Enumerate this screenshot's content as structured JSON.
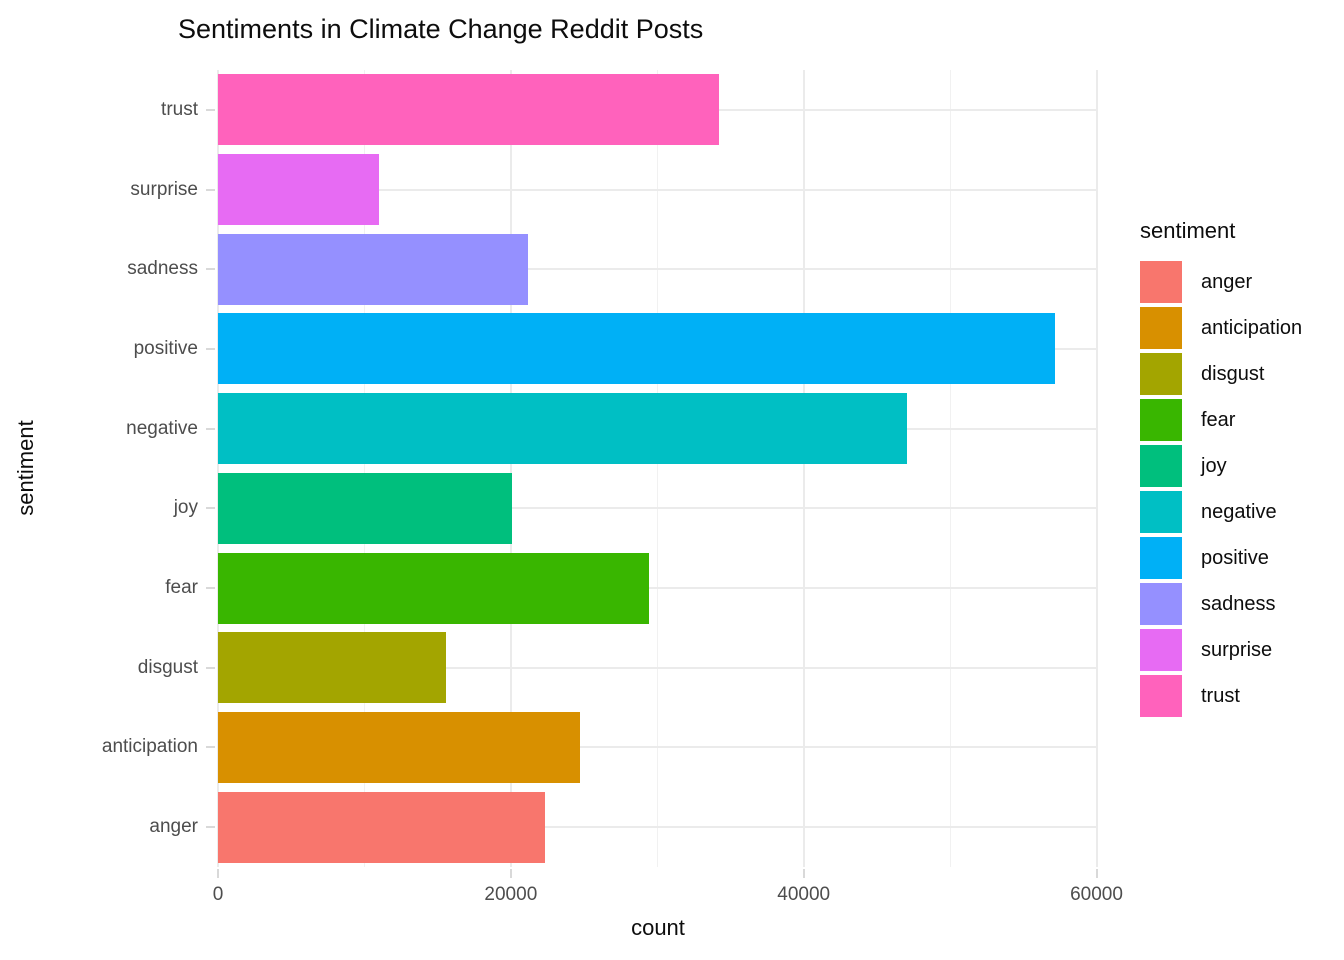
{
  "chart_data": {
    "type": "bar",
    "orientation": "horizontal",
    "title": "Sentiments in Climate Change Reddit Posts",
    "xlabel": "count",
    "ylabel": "sentiment",
    "grid": true,
    "xlim": [
      0,
      60100
    ],
    "x_major_ticks": [
      0,
      20000,
      40000,
      60000
    ],
    "x_major_tick_labels": [
      "0",
      "20000",
      "40000",
      "60000"
    ],
    "x_minor_ticks": [
      10000,
      30000,
      50000
    ],
    "categories_top_to_bottom": [
      "trust",
      "surprise",
      "sadness",
      "positive",
      "negative",
      "joy",
      "fear",
      "disgust",
      "anticipation",
      "anger"
    ],
    "values_top_to_bottom": [
      34250,
      11000,
      21200,
      57150,
      47050,
      20050,
      29450,
      15600,
      24750,
      22350
    ],
    "legend": {
      "title": "sentiment",
      "position": "right",
      "entries": [
        {
          "label": "anger",
          "color": "#F8766D"
        },
        {
          "label": "anticipation",
          "color": "#D89000"
        },
        {
          "label": "disgust",
          "color": "#A3A500"
        },
        {
          "label": "fear",
          "color": "#39B600"
        },
        {
          "label": "joy",
          "color": "#00BF7D"
        },
        {
          "label": "negative",
          "color": "#00BFC4"
        },
        {
          "label": "positive",
          "color": "#00B0F6"
        },
        {
          "label": "sadness",
          "color": "#9590FF"
        },
        {
          "label": "surprise",
          "color": "#E76BF3"
        },
        {
          "label": "trust",
          "color": "#FF62BC"
        }
      ]
    }
  }
}
